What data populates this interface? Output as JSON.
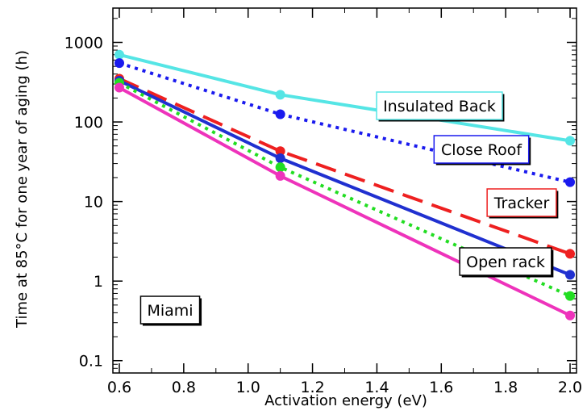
{
  "chart_data": {
    "type": "line",
    "title": "",
    "xlabel": "Activation energy (eV)",
    "ylabel": "Time at 85°C for one year of aging (h)",
    "xlim": [
      0.58,
      2.02
    ],
    "ylim": [
      0.07,
      2700
    ],
    "y_scale": "log",
    "grid": false,
    "x_ticks": [
      "0.6",
      "0.8",
      "1.0",
      "1.2",
      "1.4",
      "1.6",
      "1.8",
      "2.0"
    ],
    "y_ticks": [
      "0.1",
      "1",
      "10",
      "100",
      "1000"
    ],
    "x": [
      0.6,
      1.1,
      2.0
    ],
    "series": [
      {
        "name": "Insulated Back",
        "color": "#55e5e5",
        "dash": "solid",
        "values": [
          700,
          220,
          58
        ]
      },
      {
        "name": "Close Roof",
        "color": "#1a1aee",
        "dash": "dotted",
        "values": [
          550,
          125,
          17.5
        ]
      },
      {
        "name": "Tracker",
        "color": "#ee2020",
        "dash": "dashed",
        "values": [
          350,
          43,
          2.2
        ]
      },
      {
        "name": "",
        "color": "#2030d0",
        "dash": "solid",
        "values": [
          330,
          35,
          1.2
        ]
      },
      {
        "name": "",
        "color": "#22dd22",
        "dash": "dotted",
        "values": [
          310,
          27,
          0.65
        ]
      },
      {
        "name": "",
        "color": "#ee33bb",
        "dash": "solid",
        "values": [
          270,
          21,
          0.37
        ]
      }
    ],
    "annotations": [
      {
        "text": "Insulated Back",
        "color": "#55e5e5"
      },
      {
        "text": "Close Roof",
        "color": "#1a1aee"
      },
      {
        "text": "Tracker",
        "color": "#ee2020"
      },
      {
        "text": "Open rack",
        "color": "#000000"
      },
      {
        "text": "Miami",
        "color": "#000000"
      }
    ]
  }
}
